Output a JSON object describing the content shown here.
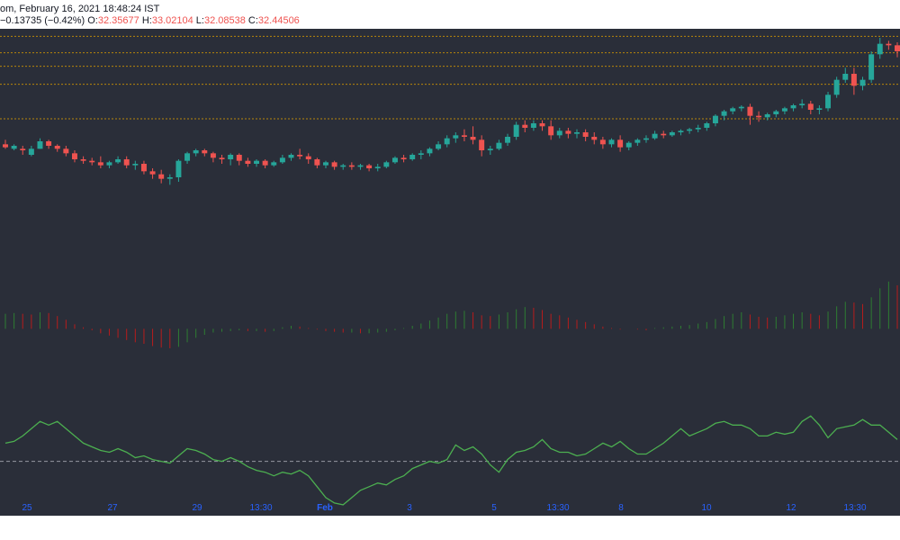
{
  "header": {
    "title_fragment": "om, February 16, 2021 18:48:24 IST",
    "change_text": "−0.13735 (−0.42%)",
    "o_label": "O:",
    "o_value": "32.35677",
    "h_label": "H:",
    "h_value": "33.02104",
    "l_label": "L:",
    "l_value": "32.08538",
    "c_label": "C:",
    "c_value": "32.44506"
  },
  "colors": {
    "background": "#2a2e39",
    "up": "#26a69a",
    "down": "#ef5350",
    "hist_up": "#2e7d32",
    "hist_down": "#b71c1c",
    "rsi_line": "#4caf50",
    "level_line": "#b8860b",
    "axis_label": "#2962ff"
  },
  "chart_data": [
    {
      "type": "candlestick",
      "y_range": [
        19.0,
        34.0
      ],
      "price_levels": [
        33.5,
        32.4,
        31.5,
        30.3,
        28.0
      ],
      "candles": [
        [
          26.3,
          26.6,
          26.1,
          26.0
        ],
        [
          26.0,
          26.3,
          26.2,
          25.9
        ],
        [
          26.0,
          26.2,
          25.9,
          25.6
        ],
        [
          25.6,
          26.2,
          26.0,
          25.5
        ],
        [
          26.0,
          26.7,
          26.5,
          26.0
        ],
        [
          26.5,
          26.6,
          26.2,
          26.0
        ],
        [
          26.2,
          26.3,
          26.0,
          25.8
        ],
        [
          26.0,
          26.2,
          25.7,
          25.5
        ],
        [
          25.7,
          25.9,
          25.3,
          25.1
        ],
        [
          25.3,
          25.5,
          25.2,
          25.0
        ],
        [
          25.2,
          25.4,
          25.1,
          24.9
        ],
        [
          25.1,
          25.5,
          24.9,
          24.7
        ],
        [
          24.9,
          25.2,
          25.1,
          24.7
        ],
        [
          25.1,
          25.5,
          25.3,
          25.0
        ],
        [
          25.3,
          25.5,
          24.9,
          24.7
        ],
        [
          24.9,
          25.2,
          25.0,
          24.6
        ],
        [
          25.0,
          25.2,
          24.5,
          24.3
        ],
        [
          24.5,
          24.7,
          24.3,
          24.0
        ],
        [
          24.3,
          24.6,
          24.0,
          23.7
        ],
        [
          24.0,
          24.3,
          24.1,
          23.6
        ],
        [
          24.1,
          25.3,
          25.2,
          23.8
        ],
        [
          25.2,
          25.8,
          25.7,
          25.0
        ],
        [
          25.7,
          26.0,
          25.9,
          25.5
        ],
        [
          25.9,
          26.0,
          25.7,
          25.5
        ],
        [
          25.7,
          25.8,
          25.4,
          25.1
        ],
        [
          25.4,
          25.6,
          25.3,
          25.0
        ],
        [
          25.3,
          25.7,
          25.6,
          24.9
        ],
        [
          25.6,
          25.7,
          25.2,
          24.9
        ],
        [
          25.2,
          25.4,
          25.0,
          24.8
        ],
        [
          25.0,
          25.3,
          25.2,
          24.8
        ],
        [
          25.2,
          25.3,
          24.9,
          24.7
        ],
        [
          24.9,
          25.2,
          25.1,
          24.8
        ],
        [
          25.1,
          25.6,
          25.4,
          25.0
        ],
        [
          25.4,
          25.7,
          25.6,
          25.2
        ],
        [
          25.6,
          26.0,
          25.5,
          25.3
        ],
        [
          25.5,
          25.7,
          25.3,
          25.0
        ],
        [
          25.3,
          25.4,
          24.9,
          24.7
        ],
        [
          24.9,
          25.2,
          25.1,
          24.7
        ],
        [
          25.1,
          25.2,
          24.8,
          24.6
        ],
        [
          24.8,
          25.0,
          24.9,
          24.6
        ],
        [
          24.9,
          25.1,
          24.8,
          24.6
        ],
        [
          24.8,
          25.0,
          24.9,
          24.6
        ],
        [
          24.9,
          25.0,
          24.7,
          24.5
        ],
        [
          24.7,
          25.0,
          24.8,
          24.5
        ],
        [
          24.8,
          25.2,
          25.1,
          24.7
        ],
        [
          25.1,
          25.5,
          25.4,
          25.0
        ],
        [
          25.4,
          25.6,
          25.3,
          25.1
        ],
        [
          25.3,
          25.7,
          25.6,
          25.2
        ],
        [
          25.6,
          25.9,
          25.7,
          25.3
        ],
        [
          25.7,
          26.1,
          26.0,
          25.5
        ],
        [
          26.0,
          26.5,
          26.3,
          25.9
        ],
        [
          26.3,
          26.9,
          26.7,
          26.1
        ],
        [
          26.7,
          27.1,
          26.9,
          26.4
        ],
        [
          26.9,
          27.3,
          26.8,
          26.5
        ],
        [
          26.8,
          27.5,
          26.6,
          26.3
        ],
        [
          26.6,
          26.9,
          25.9,
          25.5
        ],
        [
          25.9,
          26.2,
          26.0,
          25.6
        ],
        [
          26.0,
          26.6,
          26.4,
          25.9
        ],
        [
          26.4,
          27.0,
          26.8,
          26.2
        ],
        [
          26.8,
          27.8,
          27.6,
          26.6
        ],
        [
          27.6,
          27.9,
          27.4,
          27.1
        ],
        [
          27.4,
          27.9,
          27.7,
          27.2
        ],
        [
          27.7,
          27.9,
          27.5,
          27.2
        ],
        [
          27.5,
          27.9,
          26.9,
          26.6
        ],
        [
          26.9,
          27.4,
          27.2,
          26.7
        ],
        [
          27.2,
          27.4,
          27.0,
          26.7
        ],
        [
          27.0,
          27.3,
          27.1,
          26.7
        ],
        [
          27.1,
          27.3,
          26.8,
          26.5
        ],
        [
          26.8,
          27.1,
          26.6,
          26.3
        ],
        [
          26.6,
          26.8,
          26.3,
          26.0
        ],
        [
          26.3,
          26.7,
          26.6,
          26.1
        ],
        [
          26.6,
          26.9,
          26.1,
          25.8
        ],
        [
          26.1,
          26.5,
          26.4,
          25.9
        ],
        [
          26.4,
          26.7,
          26.6,
          26.2
        ],
        [
          26.6,
          26.9,
          26.7,
          26.4
        ],
        [
          26.7,
          27.2,
          27.0,
          26.6
        ],
        [
          27.0,
          27.2,
          26.9,
          26.7
        ],
        [
          26.9,
          27.2,
          27.1,
          26.8
        ],
        [
          27.1,
          27.3,
          27.2,
          26.9
        ],
        [
          27.2,
          27.4,
          27.3,
          27.0
        ],
        [
          27.3,
          27.6,
          27.4,
          27.1
        ],
        [
          27.4,
          27.8,
          27.7,
          27.2
        ],
        [
          27.7,
          28.3,
          28.2,
          27.5
        ],
        [
          28.2,
          28.6,
          28.5,
          27.9
        ],
        [
          28.5,
          28.8,
          28.7,
          28.3
        ],
        [
          28.7,
          28.9,
          28.8,
          28.5
        ],
        [
          28.8,
          29.0,
          28.2,
          27.6
        ],
        [
          28.2,
          28.5,
          28.1,
          27.8
        ],
        [
          28.1,
          28.4,
          28.3,
          27.9
        ],
        [
          28.3,
          28.6,
          28.5,
          28.1
        ],
        [
          28.5,
          28.8,
          28.7,
          28.3
        ],
        [
          28.7,
          29.0,
          28.9,
          28.5
        ],
        [
          28.9,
          29.3,
          29.0,
          28.7
        ],
        [
          29.0,
          29.2,
          28.6,
          28.3
        ],
        [
          28.6,
          28.9,
          28.7,
          28.3
        ],
        [
          28.7,
          29.8,
          29.6,
          28.5
        ],
        [
          29.6,
          30.8,
          30.6,
          29.4
        ],
        [
          30.6,
          31.4,
          31.0,
          30.4
        ],
        [
          31.0,
          31.4,
          30.2,
          29.6
        ],
        [
          30.2,
          30.8,
          30.6,
          29.9
        ],
        [
          30.6,
          32.5,
          32.3,
          30.4
        ],
        [
          32.3,
          33.4,
          33.0,
          32.0
        ],
        [
          33.0,
          33.2,
          32.9,
          32.6
        ],
        [
          32.9,
          33.1,
          32.5,
          32.1
        ]
      ]
    },
    {
      "type": "histogram",
      "y_range": [
        -8,
        10
      ],
      "values": [
        2.0,
        2.1,
        2.0,
        1.9,
        2.2,
        2.1,
        1.7,
        1.2,
        0.6,
        0.2,
        -0.2,
        -0.6,
        -0.9,
        -1.2,
        -1.5,
        -1.8,
        -2.0,
        -2.3,
        -2.5,
        -2.6,
        -2.4,
        -1.8,
        -1.2,
        -0.8,
        -0.5,
        -0.4,
        -0.3,
        -0.2,
        -0.3,
        -0.3,
        -0.4,
        -0.3,
        0.2,
        0.4,
        0.3,
        0.1,
        -0.1,
        -0.3,
        -0.4,
        -0.5,
        -0.5,
        -0.6,
        -0.6,
        -0.5,
        -0.4,
        -0.2,
        0.1,
        0.4,
        0.7,
        1.1,
        1.5,
        2.0,
        2.3,
        2.4,
        2.2,
        1.8,
        1.7,
        1.9,
        2.2,
        2.6,
        2.9,
        2.8,
        2.5,
        2.0,
        1.8,
        1.5,
        1.2,
        0.9,
        0.6,
        0.3,
        0.1,
        -0.1,
        0.0,
        -0.1,
        -0.2,
        0.1,
        0.2,
        0.3,
        0.4,
        0.5,
        0.7,
        0.9,
        1.3,
        1.7,
        2.0,
        2.2,
        1.9,
        1.6,
        1.5,
        1.6,
        1.8,
        2.0,
        2.2,
        2.0,
        1.8,
        2.3,
        3.0,
        3.6,
        3.5,
        3.3,
        4.2,
        5.4,
        6.3,
        5.8
      ]
    },
    {
      "type": "line",
      "y_range": [
        20,
        90
      ],
      "reference_level": 50,
      "values": [
        60,
        61,
        64,
        68,
        72,
        70,
        72,
        68,
        64,
        60,
        58,
        56,
        55,
        57,
        55,
        52,
        53,
        51,
        50,
        49,
        53,
        57,
        56,
        54,
        51,
        50,
        52,
        50,
        47,
        45,
        44,
        42,
        44,
        43,
        45,
        42,
        36,
        30,
        27,
        26,
        30,
        34,
        36,
        38,
        37,
        40,
        42,
        46,
        48,
        50,
        49,
        51,
        59,
        56,
        58,
        54,
        48,
        44,
        51,
        55,
        56,
        58,
        62,
        57,
        55,
        55,
        53,
        54,
        57,
        60,
        58,
        61,
        57,
        54,
        54,
        57,
        60,
        64,
        68,
        64,
        66,
        68,
        71,
        72,
        70,
        70,
        68,
        64,
        64,
        66,
        65,
        66,
        72,
        75,
        70,
        63,
        68,
        69,
        70,
        73,
        70,
        70,
        66,
        62
      ]
    }
  ],
  "time_axis": {
    "labels": [
      "25",
      "27",
      "29",
      "13:30",
      "Feb",
      "3",
      "5",
      "13:30",
      "8",
      "10",
      "12",
      "13:30"
    ],
    "bold_label": "Feb"
  }
}
